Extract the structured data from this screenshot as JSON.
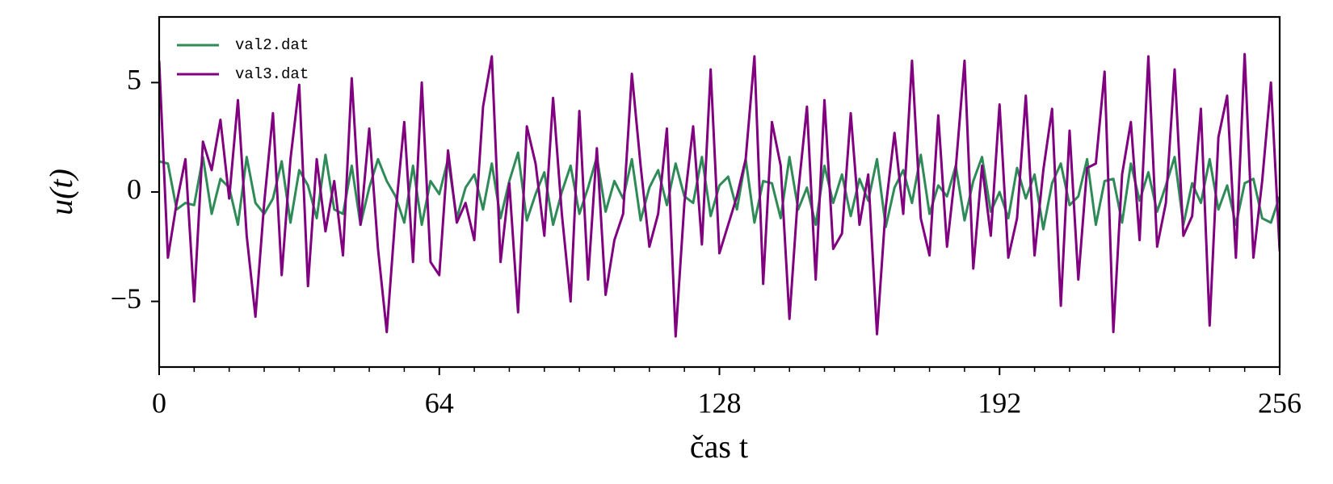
{
  "chart_data": {
    "type": "line",
    "xlabel": "čas t",
    "ylabel": "u(t)",
    "xlim": [
      0,
      256
    ],
    "ylim": [
      -8,
      8
    ],
    "xticks": [
      0,
      64,
      128,
      192,
      256
    ],
    "xticks_minor": [
      8,
      16,
      24,
      32,
      40,
      48,
      56,
      72,
      80,
      88,
      96,
      104,
      112,
      120,
      136,
      144,
      152,
      160,
      168,
      176,
      184,
      200,
      208,
      216,
      224,
      232,
      240,
      248
    ],
    "yticks": [
      {
        "value": -5,
        "label": "−5"
      },
      0,
      5
    ],
    "legend": "upper left",
    "x": [
      0,
      2,
      4,
      6,
      8,
      10,
      12,
      14,
      16,
      18,
      20,
      22,
      24,
      26,
      28,
      30,
      32,
      34,
      36,
      38,
      40,
      42,
      44,
      46,
      48,
      50,
      52,
      54,
      56,
      58,
      60,
      62,
      64,
      66,
      68,
      70,
      72,
      74,
      76,
      78,
      80,
      82,
      84,
      86,
      88,
      90,
      92,
      94,
      96,
      98,
      100,
      102,
      104,
      106,
      108,
      110,
      112,
      114,
      116,
      118,
      120,
      122,
      124,
      126,
      128,
      130,
      132,
      134,
      136,
      138,
      140,
      142,
      144,
      146,
      148,
      150,
      152,
      154,
      156,
      158,
      160,
      162,
      164,
      166,
      168,
      170,
      172,
      174,
      176,
      178,
      180,
      182,
      184,
      186,
      188,
      190,
      192,
      194,
      196,
      198,
      200,
      202,
      204,
      206,
      208,
      210,
      212,
      214,
      216,
      218,
      220,
      222,
      224,
      226,
      228,
      230,
      232,
      234,
      236,
      238,
      240,
      242,
      244,
      246,
      248,
      250,
      252,
      254,
      256
    ],
    "series": [
      {
        "name": "val2.dat",
        "color": "#2e8b57",
        "values": [
          1.4,
          1.3,
          -0.8,
          -0.5,
          -0.6,
          1.6,
          -1.0,
          0.6,
          0.2,
          -1.5,
          1.6,
          -0.5,
          -1.0,
          -0.3,
          1.4,
          -1.4,
          1.0,
          0.3,
          -1.2,
          1.7,
          -0.8,
          -1.0,
          1.2,
          -1.5,
          0.2,
          1.5,
          0.5,
          -0.2,
          -1.4,
          1.2,
          -1.5,
          0.5,
          -0.1,
          1.5,
          -1.2,
          0.2,
          0.8,
          -0.8,
          1.3,
          -1.2,
          0.5,
          1.8,
          -1.3,
          -0.1,
          0.9,
          -1.5,
          0.0,
          1.2,
          -1.0,
          0.2,
          1.6,
          -0.9,
          0.5,
          -0.3,
          1.5,
          -1.3,
          0.2,
          1.0,
          -0.6,
          1.3,
          -0.2,
          -0.5,
          1.6,
          -1.1,
          0.3,
          0.7,
          -0.8,
          1.5,
          -1.4,
          0.5,
          0.4,
          -1.2,
          1.6,
          -0.8,
          0.2,
          -1.5,
          1.2,
          -0.5,
          0.8,
          -1.1,
          0.6,
          -0.4,
          1.5,
          -1.6,
          0.2,
          1.0,
          -0.5,
          1.7,
          -1.0,
          0.3,
          -0.2,
          1.2,
          -1.3,
          0.5,
          1.6,
          -0.9,
          0.0,
          -1.2,
          1.1,
          -0.3,
          0.8,
          -1.7,
          0.4,
          1.3,
          -0.6,
          -0.2,
          1.5,
          -1.5,
          0.5,
          0.6,
          -1.4,
          1.3,
          -0.4,
          0.9,
          -0.9,
          0.3,
          1.6,
          -1.5,
          0.4,
          -0.5,
          1.5,
          -0.8,
          0.3,
          -1.5,
          0.4,
          0.6,
          -1.2,
          -1.4,
          -0.2
        ]
      },
      {
        "name": "val3.dat",
        "color": "#800080",
        "values": [
          6.0,
          -3.0,
          -0.5,
          1.5,
          -5.0,
          2.3,
          1.0,
          3.3,
          -0.3,
          4.2,
          -2.0,
          -5.7,
          -0.5,
          3.6,
          -3.8,
          1.5,
          4.9,
          -4.3,
          1.5,
          -1.8,
          0.5,
          -2.9,
          5.2,
          -1.5,
          2.9,
          -2.6,
          -6.4,
          -1.0,
          3.2,
          -3.2,
          5.0,
          -3.2,
          -3.8,
          1.9,
          -1.4,
          -0.5,
          -2.2,
          3.9,
          6.2,
          -3.2,
          0.4,
          -5.5,
          3.0,
          1.3,
          -2.0,
          4.3,
          -1.0,
          -5.0,
          3.7,
          -4.0,
          2.0,
          -4.7,
          -2.2,
          -1.0,
          5.4,
          1.2,
          -2.5,
          -1.0,
          2.9,
          -6.6,
          -0.5,
          3.0,
          -2.4,
          5.6,
          -2.8,
          -1.5,
          -0.2,
          1.5,
          6.2,
          -4.2,
          3.2,
          1.2,
          -5.8,
          0.0,
          3.9,
          -4.0,
          4.2,
          -2.6,
          -1.9,
          3.6,
          -1.5,
          0.8,
          -6.5,
          -0.7,
          2.7,
          -1.0,
          6.0,
          -1.2,
          -2.9,
          3.5,
          -2.5,
          1.1,
          6.0,
          -3.5,
          1.2,
          -2.0,
          4.0,
          -3.0,
          -1.2,
          4.4,
          -2.9,
          1.0,
          3.8,
          -5.2,
          2.8,
          -4.0,
          1.1,
          1.3,
          5.5,
          -6.4,
          0.8,
          3.2,
          -2.2,
          6.2,
          -2.5,
          -0.5,
          5.6,
          -2.0,
          -1.1,
          3.8,
          -6.1,
          2.5,
          4.4,
          -3.0,
          6.3,
          -3.0,
          0.5,
          5.0,
          -2.7
        ]
      }
    ]
  }
}
